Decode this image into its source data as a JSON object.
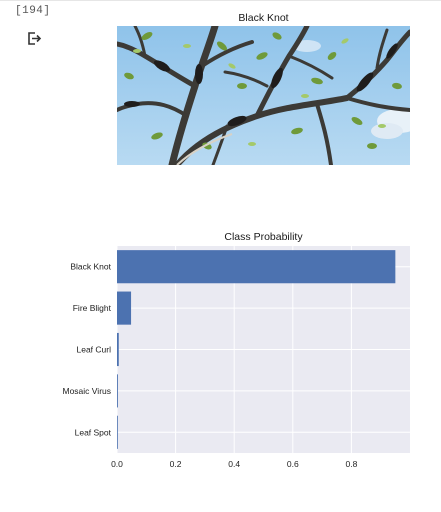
{
  "cell": {
    "execution_count": "[194]"
  },
  "output": {
    "image_title": "Black Knot",
    "photo_icon": "tree-branch-photo",
    "output_icon": "output-arrow-icon"
  },
  "chart_data": {
    "type": "bar",
    "orientation": "horizontal",
    "title": "Class Probability",
    "xlabel": "",
    "ylabel": "",
    "categories": [
      "Black Knot",
      "Fire Blight",
      "Leaf Curl",
      "Mosaic Virus",
      "Leaf Spot"
    ],
    "values": [
      0.95,
      0.048,
      0.006,
      0.003,
      0.002
    ],
    "xlim": [
      0,
      1.0
    ],
    "xticks": [
      0.0,
      0.2,
      0.4,
      0.6,
      0.8
    ],
    "xtick_labels": [
      "0.0",
      "0.2",
      "0.4",
      "0.6",
      "0.8"
    ],
    "grid": true,
    "colors": {
      "bar": "#4c72b0",
      "plot_bg": "#eaeaf2",
      "grid": "#ffffff"
    }
  }
}
